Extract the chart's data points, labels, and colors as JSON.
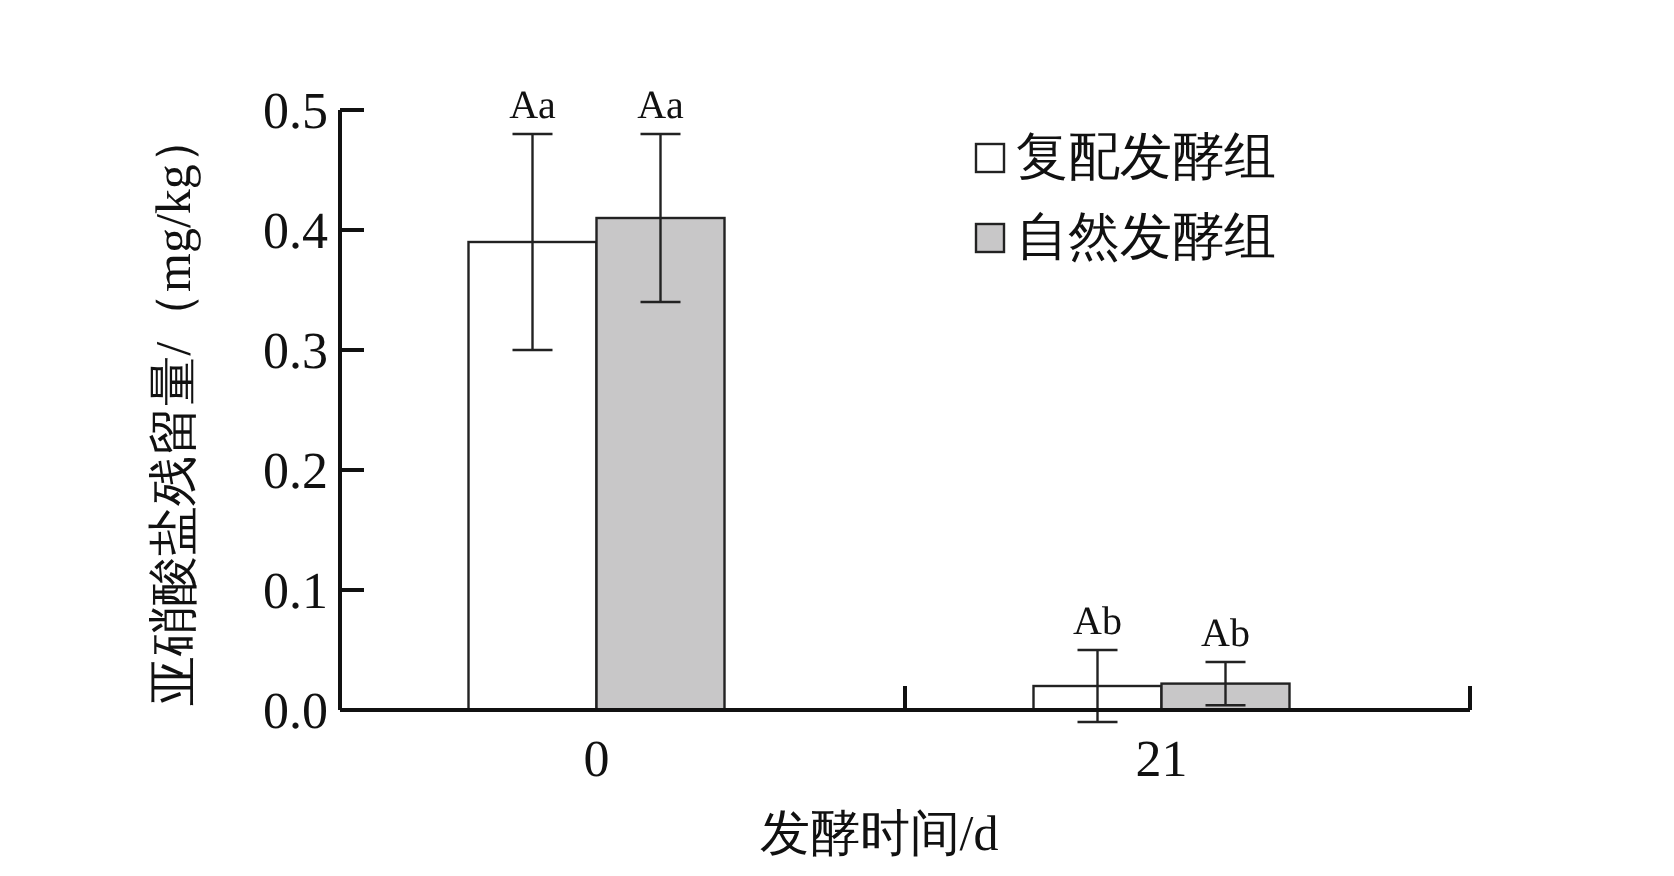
{
  "chart_data": {
    "type": "bar",
    "categories": [
      "0",
      "21"
    ],
    "series": [
      {
        "name": "复配发酵组",
        "color": "#ffffff",
        "values": [
          0.39,
          0.02
        ],
        "errors": [
          0.09,
          0.03
        ]
      },
      {
        "name": "自然发酵组",
        "color": "#c8c7c8",
        "values": [
          0.41,
          0.022
        ],
        "errors": [
          0.07,
          0.018
        ]
      }
    ],
    "xlabel": "发酵时间/d",
    "ylabel": "亚硝酸盐残留量/（mg/kg）",
    "ylim": [
      0,
      0.5
    ],
    "yticks": [
      {
        "value": 0,
        "label": "0.0"
      },
      0.1,
      0.2,
      0.3,
      0.4,
      0.5
    ],
    "legend": "top right",
    "annotations": [
      "Aa",
      "Aa",
      "Ab",
      "Ab"
    ]
  }
}
